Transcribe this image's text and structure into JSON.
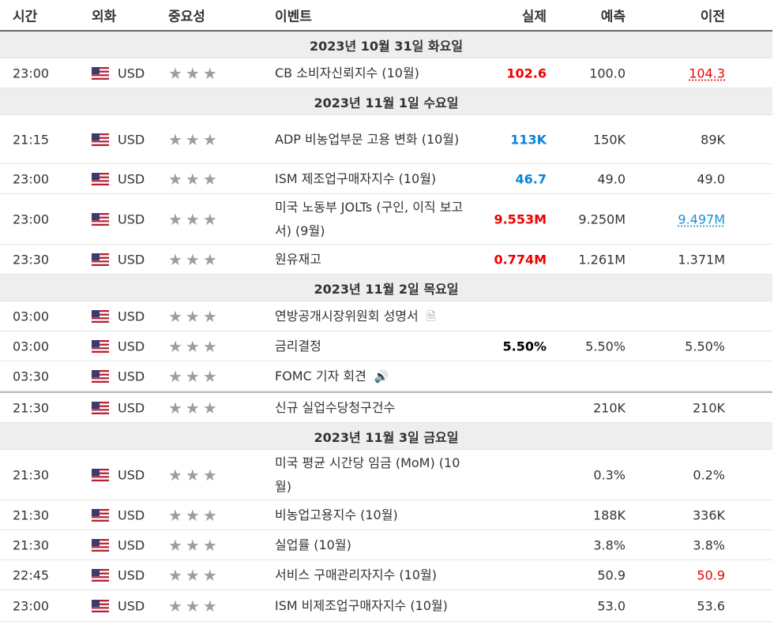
{
  "header": {
    "time": "시간",
    "currency": "외화",
    "importance": "중요성",
    "event": "이벤트",
    "actual": "실제",
    "forecast": "예측",
    "previous": "이전"
  },
  "dates": [
    "2023년 10월 31일 화요일",
    "2023년 11월 1일 수요일",
    "2023년 11월 2일 목요일",
    "2023년 11월 3일 금요일"
  ],
  "stars": "★★★",
  "events": [
    {
      "time": "23:00",
      "cur": "USD",
      "name": "CB 소비자신뢰지수 (10월)",
      "actual": "102.6",
      "forecast": "100.0",
      "previous": "104.3"
    },
    {
      "time": "21:15",
      "cur": "USD",
      "name": "ADP 비농업부문 고용 변화 (10월)",
      "actual": "113K",
      "forecast": "150K",
      "previous": "89K"
    },
    {
      "time": "23:00",
      "cur": "USD",
      "name": "ISM 제조업구매자지수 (10월)",
      "actual": "46.7",
      "forecast": "49.0",
      "previous": "49.0"
    },
    {
      "time": "23:00",
      "cur": "USD",
      "name": "미국 노동부 JOLTs (구인, 이직 보고서) (9월)",
      "actual": "9.553M",
      "forecast": "9.250M",
      "previous": "9.497M"
    },
    {
      "time": "23:30",
      "cur": "USD",
      "name": "원유재고",
      "actual": "0.774M",
      "forecast": "1.261M",
      "previous": "1.371M"
    },
    {
      "time": "03:00",
      "cur": "USD",
      "name": "연방공개시장위원회 성명서",
      "actual": "",
      "forecast": "",
      "previous": ""
    },
    {
      "time": "03:00",
      "cur": "USD",
      "name": "금리결정",
      "actual": "5.50%",
      "forecast": "5.50%",
      "previous": "5.50%"
    },
    {
      "time": "03:30",
      "cur": "USD",
      "name": "FOMC 기자 회견",
      "actual": "",
      "forecast": "",
      "previous": ""
    },
    {
      "time": "21:30",
      "cur": "USD",
      "name": "신규 실업수당청구건수",
      "actual": "",
      "forecast": "210K",
      "previous": "210K"
    },
    {
      "time": "21:30",
      "cur": "USD",
      "name": "미국 평균 시간당 임금 (MoM) (10월)",
      "actual": "",
      "forecast": "0.3%",
      "previous": "0.2%"
    },
    {
      "time": "21:30",
      "cur": "USD",
      "name": "비농업고용지수 (10월)",
      "actual": "",
      "forecast": "188K",
      "previous": "336K"
    },
    {
      "time": "21:30",
      "cur": "USD",
      "name": "실업률 (10월)",
      "actual": "",
      "forecast": "3.8%",
      "previous": "3.8%"
    },
    {
      "time": "22:45",
      "cur": "USD",
      "name": "서비스 구매관리자지수 (10월)",
      "actual": "",
      "forecast": "50.9",
      "previous": "50.9"
    },
    {
      "time": "23:00",
      "cur": "USD",
      "name": "ISM 비제조업구매자지수 (10월)",
      "actual": "",
      "forecast": "53.0",
      "previous": "53.6"
    }
  ],
  "colors": {
    "red": "#ee0000",
    "blue": "#0a84d8",
    "star": "#9e9e9e",
    "date_bg": "#eeeeee"
  }
}
